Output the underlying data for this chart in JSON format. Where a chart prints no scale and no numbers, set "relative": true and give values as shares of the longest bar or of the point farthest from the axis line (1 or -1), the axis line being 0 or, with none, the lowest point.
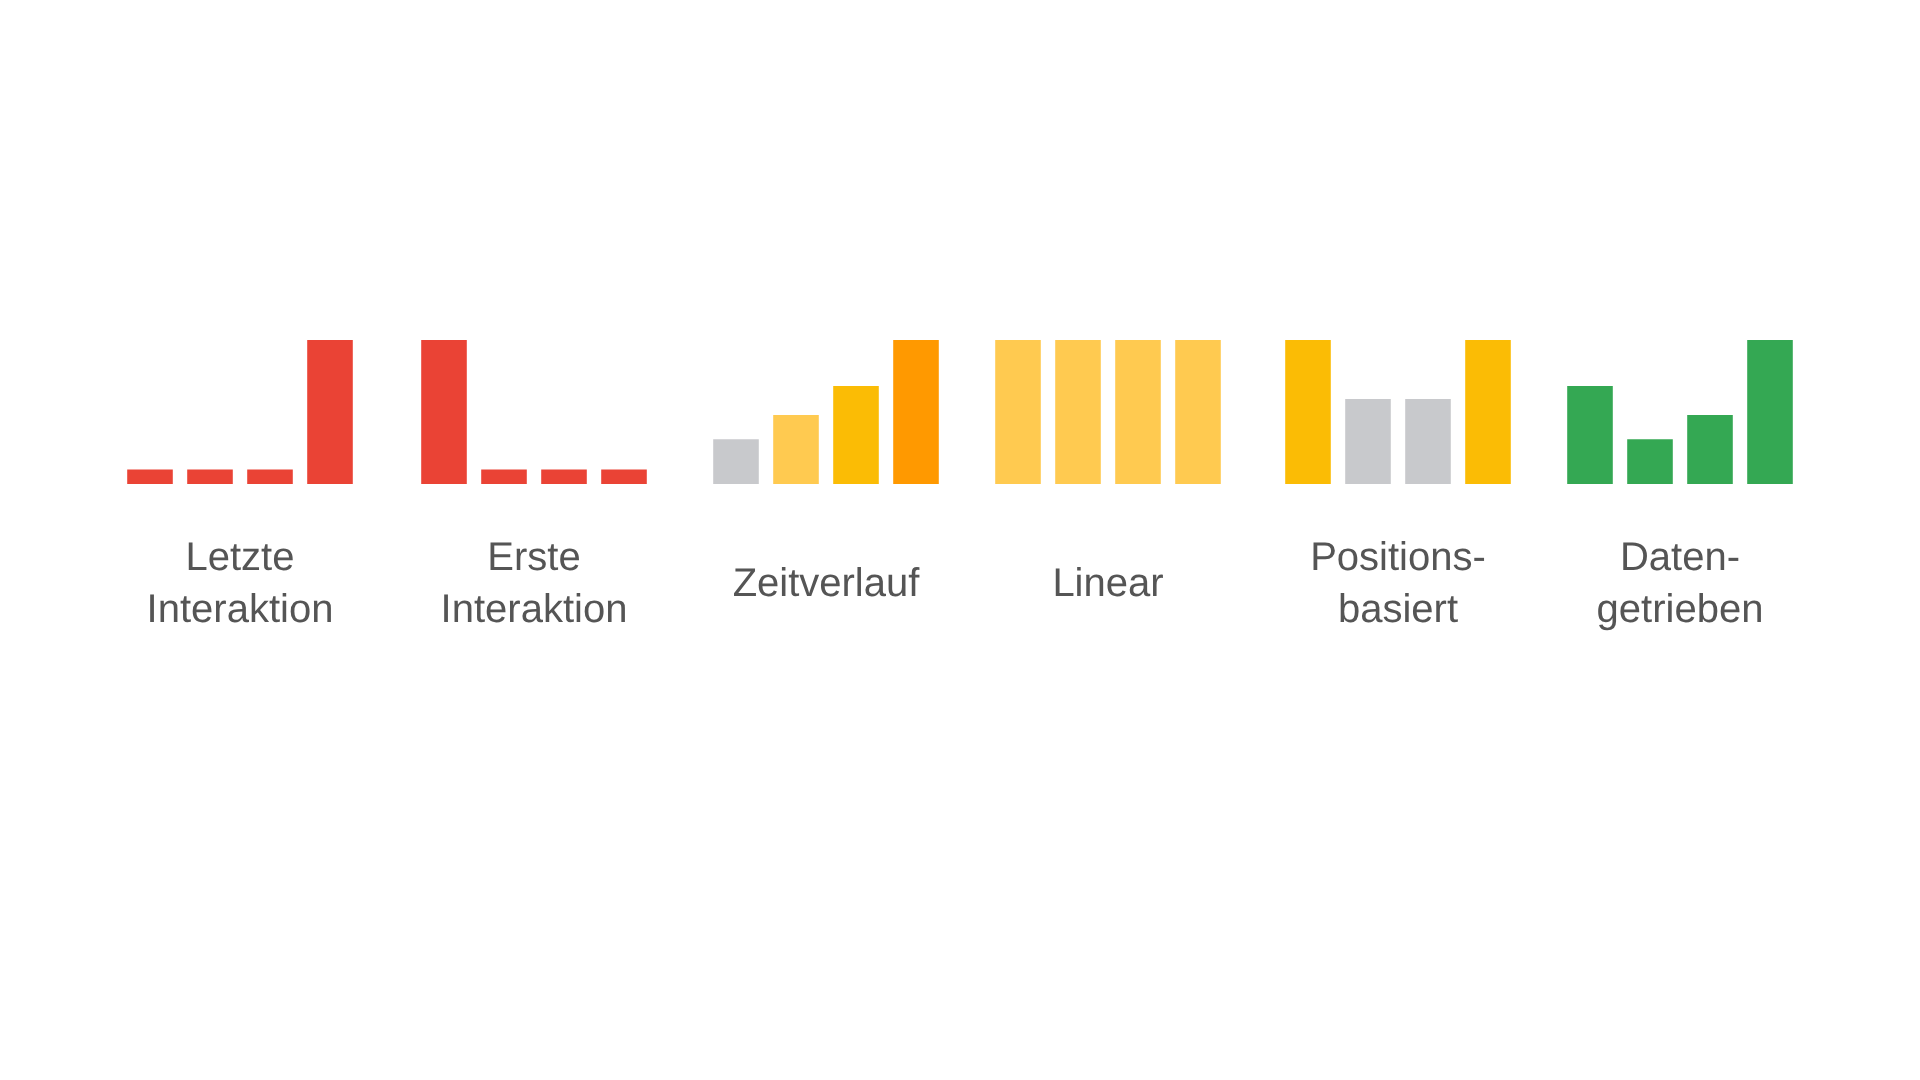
{
  "chart_data": [
    {
      "type": "bar",
      "title": "Letzte Interaktion",
      "categories": [
        null,
        null,
        null,
        null
      ],
      "values": [
        0.1,
        0.1,
        0.1,
        1
      ],
      "colors": [
        "#ea4335",
        "#ea4335",
        "#ea4335",
        "#ea4335"
      ],
      "relative": true
    },
    {
      "type": "bar",
      "title": "Erste Interaktion",
      "categories": [
        null,
        null,
        null,
        null
      ],
      "values": [
        1,
        0.1,
        0.1,
        0.1
      ],
      "colors": [
        "#ea4335",
        "#ea4335",
        "#ea4335",
        "#ea4335"
      ],
      "relative": true
    },
    {
      "type": "bar",
      "title": "Zeitverlauf",
      "categories": [
        null,
        null,
        null,
        null
      ],
      "values": [
        0.31,
        0.48,
        0.68,
        1
      ],
      "colors": [
        "#c8c9cc",
        "#ffca50",
        "#fbbc05",
        "#ff9900"
      ],
      "relative": true
    },
    {
      "type": "bar",
      "title": "Linear",
      "categories": [
        null,
        null,
        null,
        null
      ],
      "values": [
        1,
        1,
        1,
        1
      ],
      "colors": [
        "#ffca50",
        "#ffca50",
        "#ffca50",
        "#ffca50"
      ],
      "relative": true
    },
    {
      "type": "bar",
      "title": "Positions-basiert",
      "categories": [
        null,
        null,
        null,
        null
      ],
      "values": [
        1,
        0.59,
        0.59,
        1
      ],
      "colors": [
        "#fbbc05",
        "#c8c9cc",
        "#c8c9cc",
        "#fbbc05"
      ],
      "relative": true
    },
    {
      "type": "bar",
      "title": "Daten-getrieben",
      "categories": [
        null,
        null,
        null,
        null
      ],
      "values": [
        0.68,
        0.31,
        0.48,
        1
      ],
      "colors": [
        "#34a853",
        "#34a853",
        "#34a853",
        "#34a853"
      ],
      "relative": true
    }
  ]
}
